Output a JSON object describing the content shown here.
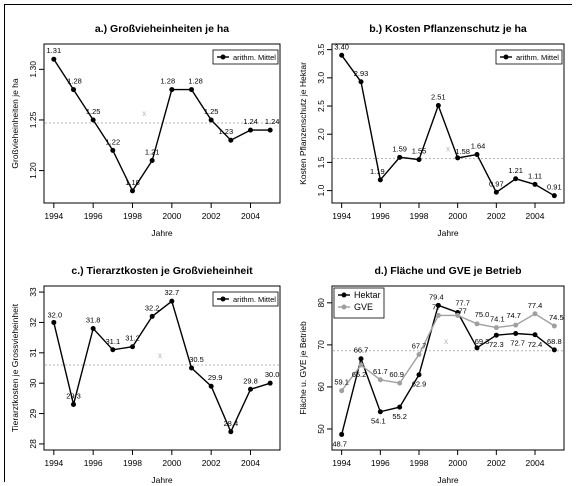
{
  "chart_data": [
    {
      "type": "line",
      "title": "a.) Großvieheinheiten je ha",
      "xlabel": "Jahre",
      "ylabel": "Großvieheinheiten je ha",
      "xlim": [
        1993.5,
        2005.5
      ],
      "ylim": [
        1.168,
        1.325
      ],
      "xticks": [
        1994,
        1996,
        1998,
        2000,
        2002,
        2004
      ],
      "xtick_labels": [
        "1994",
        "1996",
        "1998",
        "2000",
        "2002",
        "2004"
      ],
      "yticks": [
        1.2,
        1.25,
        1.3
      ],
      "ytick_labels": [
        "1.20",
        "1.25",
        "1.30"
      ],
      "grid": false,
      "legend_position": "top-right",
      "series": [
        {
          "name": "arithm. Mittel",
          "color": "#000000",
          "x": [
            1994,
            1995,
            1996,
            1997,
            1998,
            1999,
            2000,
            2001,
            2002,
            2003,
            2004,
            2005
          ],
          "values": [
            1.31,
            1.28,
            1.25,
            1.22,
            1.18,
            1.21,
            1.28,
            1.28,
            1.25,
            1.23,
            1.24,
            1.24
          ],
          "labels": [
            "1.31",
            "1.28",
            "1.25",
            "1.22",
            "1.18",
            "1.21",
            "1.28",
            "1.28",
            "1.25",
            "1.23",
            "1.24",
            "1.24"
          ]
        }
      ],
      "mean_line": {
        "value": 1.247,
        "color": "#b4b4b4",
        "marker_label": "x",
        "marker_x": 1998.6
      }
    },
    {
      "type": "line",
      "title": "b.) Kosten Pflanzenschutz je ha",
      "xlabel": "Jahre",
      "ylabel": "Kosten Pflanzenschutz je Hektar",
      "xlim": [
        1993.5,
        2005.5
      ],
      "ylim": [
        0.78,
        3.6
      ],
      "xticks": [
        1994,
        1996,
        1998,
        2000,
        2002,
        2004
      ],
      "xtick_labels": [
        "1994",
        "1996",
        "1998",
        "2000",
        "2002",
        "2004"
      ],
      "yticks": [
        1.0,
        1.5,
        2.0,
        2.5,
        3.0,
        3.5
      ],
      "ytick_labels": [
        "1.0",
        "1.5",
        "2.0",
        "2.5",
        "3.0",
        "3.5"
      ],
      "grid": false,
      "legend_position": "top-right",
      "series": [
        {
          "name": "arithm. Mittel",
          "color": "#000000",
          "x": [
            1994,
            1995,
            1996,
            1997,
            1998,
            1999,
            2000,
            2001,
            2002,
            2003,
            2004,
            2005
          ],
          "values": [
            3.4,
            2.93,
            1.19,
            1.59,
            1.55,
            2.51,
            1.58,
            1.64,
            0.97,
            1.21,
            1.11,
            0.91
          ],
          "labels": [
            "3.40",
            "2.93",
            "1.19",
            "1.59",
            "1.55",
            "2.51",
            "1.58",
            "1.64",
            "0.97",
            "1.21",
            "1.11",
            "0.91"
          ]
        }
      ],
      "mean_line": {
        "value": 1.57,
        "color": "#b4b4b4",
        "marker_label": "x",
        "marker_x": 1999.5
      }
    },
    {
      "type": "line",
      "title": "c.) Tierarztkosten je Großvieheinheit",
      "xlabel": "Jahre",
      "ylabel": "Tierarztkosten je Grossvieheinheit",
      "xlim": [
        1993.5,
        2005.5
      ],
      "ylim": [
        27.8,
        33.2
      ],
      "xticks": [
        1994,
        1996,
        1998,
        2000,
        2002,
        2004
      ],
      "xtick_labels": [
        "1994",
        "1996",
        "1998",
        "2000",
        "2002",
        "2004"
      ],
      "yticks": [
        28,
        29,
        30,
        31,
        32,
        33
      ],
      "ytick_labels": [
        "28",
        "29",
        "30",
        "31",
        "32",
        "33"
      ],
      "grid": false,
      "legend_position": "top-right",
      "series": [
        {
          "name": "arithm. Mittel",
          "color": "#000000",
          "x": [
            1994,
            1995,
            1996,
            1997,
            1998,
            1999,
            2000,
            2001,
            2002,
            2003,
            2004,
            2005
          ],
          "values": [
            32.0,
            29.3,
            31.8,
            31.1,
            31.2,
            32.2,
            32.7,
            30.5,
            29.9,
            28.4,
            29.8,
            30.0
          ],
          "labels": [
            "32.0",
            "29.3",
            "31.8",
            "31.1",
            "31.2",
            "32.2",
            "32.7",
            "30.5",
            "29.9",
            "28.4",
            "29.8",
            "30.0"
          ]
        }
      ],
      "mean_line": {
        "value": 30.6,
        "color": "#b4b4b4",
        "marker_label": "x",
        "marker_x": 1999.4
      }
    },
    {
      "type": "line",
      "title": "d.) Fläche und GVE je Betrieb",
      "xlabel": "Jahre",
      "ylabel": "Fläche u. GVE je Betrieb",
      "xlim": [
        1993.5,
        2005.5
      ],
      "ylim": [
        45,
        84
      ],
      "xticks": [
        1994,
        1996,
        1998,
        2000,
        2002,
        2004
      ],
      "xtick_labels": [
        "1994",
        "1996",
        "1998",
        "2000",
        "2002",
        "2004"
      ],
      "yticks": [
        50,
        60,
        70,
        80
      ],
      "ytick_labels": [
        "50",
        "60",
        "70",
        "80"
      ],
      "grid": false,
      "legend_position": "top-left",
      "series": [
        {
          "name": "Hektar",
          "color": "#000000",
          "x": [
            1994,
            1995,
            1996,
            1997,
            1998,
            1999,
            2000,
            2001,
            2002,
            2003,
            2004,
            2005
          ],
          "values": [
            48.7,
            66.7,
            54.1,
            55.2,
            62.9,
            79.4,
            77.7,
            69.3,
            72.3,
            72.7,
            72.4,
            68.8
          ],
          "labels": [
            "48.7",
            "66.7",
            "54.1",
            "55.2",
            "62.9",
            "79.4",
            "77.7",
            "69.3",
            "72.3",
            "72.7",
            "72.4",
            "68.8"
          ]
        },
        {
          "name": "GVE",
          "color": "#a0a0a0",
          "x": [
            1994,
            1995,
            1996,
            1997,
            1998,
            1999,
            2000,
            2001,
            2002,
            2003,
            2004,
            2005
          ],
          "values": [
            59.1,
            65.2,
            61.7,
            60.9,
            67.7,
            77.0,
            77.0,
            75.0,
            74.1,
            74.7,
            77.4,
            74.5
          ],
          "labels": [
            "59.1",
            "65.2",
            "61.7",
            "60.9",
            "67.7",
            "77",
            "77",
            "75.0",
            "74.1",
            "74.7",
            "77.4",
            "74.5"
          ]
        }
      ],
      "mean_line": {
        "value": 68.6,
        "color": "#b4b4b4",
        "marker_label": "x",
        "marker_x": 1999.4
      }
    }
  ]
}
